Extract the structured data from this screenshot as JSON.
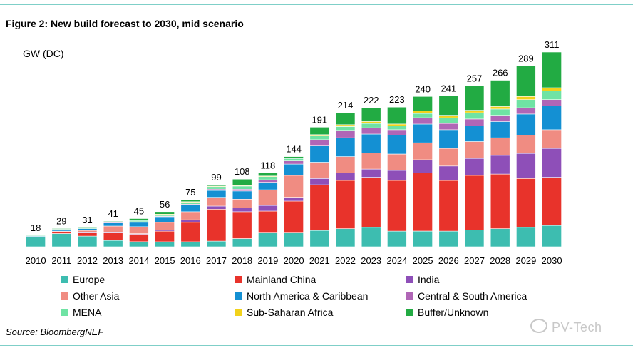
{
  "title": "Figure 2:  New build forecast to 2030, mid scenario",
  "source": "Source: BloombergNEF",
  "watermark": "PV-Tech",
  "chart_data": {
    "type": "bar",
    "stacked": true,
    "ylabel": "GW (DC)",
    "ylim": [
      0,
      311
    ],
    "grid": false,
    "legend_position": "bottom",
    "categories": [
      "2010",
      "2011",
      "2012",
      "2013",
      "2014",
      "2015",
      "2016",
      "2017",
      "2018",
      "2019",
      "2020",
      "2021",
      "2022",
      "2023",
      "2024",
      "2025",
      "2026",
      "2027",
      "2028",
      "2029",
      "2030"
    ],
    "totals": [
      18,
      29,
      31,
      41,
      45,
      56,
      75,
      99,
      108,
      118,
      144,
      191,
      214,
      222,
      223,
      240,
      241,
      257,
      266,
      289,
      311
    ],
    "series": [
      {
        "name": "Europe",
        "color": "#3dbdb0",
        "values": [
          16,
          21,
          17,
          10,
          8,
          8,
          8,
          9,
          13,
          22,
          22,
          26,
          29,
          31,
          25,
          25,
          25,
          27,
          29,
          31,
          34
        ]
      },
      {
        "name": "Mainland China",
        "color": "#e8332b",
        "values": [
          0,
          3,
          5,
          12,
          12,
          17,
          31,
          51,
          43,
          35,
          51,
          73,
          77,
          80,
          81,
          93,
          81,
          87,
          87,
          78,
          77
        ]
      },
      {
        "name": "India",
        "color": "#8e4fb8",
        "values": [
          0,
          0,
          1,
          1,
          1,
          2,
          4,
          5,
          6,
          9,
          6,
          10,
          12,
          13,
          16,
          21,
          23,
          27,
          30,
          40,
          46
        ]
      },
      {
        "name": "Other Asia",
        "color": "#f08c82",
        "values": [
          0,
          1,
          3,
          10,
          11,
          12,
          13,
          14,
          14,
          25,
          35,
          26,
          26,
          26,
          26,
          27,
          28,
          27,
          28,
          29,
          30
        ]
      },
      {
        "name": "North America & Caribbean",
        "color": "#1490d3",
        "values": [
          1,
          2,
          3,
          5,
          7,
          9,
          11,
          11,
          13,
          12,
          18,
          26,
          30,
          30,
          30,
          30,
          30,
          25,
          26,
          34,
          38
        ]
      },
      {
        "name": "Central & South America",
        "color": "#b066b6",
        "values": [
          0,
          0,
          0,
          1,
          1,
          1,
          1,
          2,
          3,
          4,
          5,
          10,
          12,
          10,
          9,
          10,
          10,
          11,
          10,
          10,
          10
        ]
      },
      {
        "name": "MENA",
        "color": "#6fe3a4",
        "values": [
          1,
          1,
          1,
          1,
          2,
          2,
          3,
          4,
          5,
          5,
          4,
          6,
          6,
          7,
          6,
          7,
          9,
          10,
          10,
          13,
          14
        ]
      },
      {
        "name": "Sub-Saharan Africa",
        "color": "#f2d21b",
        "values": [
          0,
          0,
          0,
          0,
          1,
          1,
          1,
          1,
          1,
          1,
          1,
          2,
          3,
          3,
          3,
          4,
          4,
          4,
          4,
          5,
          5
        ]
      },
      {
        "name": "Buffer/Unknown",
        "color": "#22ab43",
        "values": [
          0,
          1,
          1,
          1,
          2,
          4,
          3,
          2,
          10,
          5,
          2,
          12,
          19,
          22,
          27,
          23,
          31,
          39,
          42,
          49,
          57
        ]
      }
    ],
    "legend_order": [
      "Europe",
      "Mainland China",
      "India",
      "Other Asia",
      "North America & Caribbean",
      "Central & South America",
      "MENA",
      "Sub-Saharan Africa",
      "Buffer/Unknown"
    ]
  }
}
